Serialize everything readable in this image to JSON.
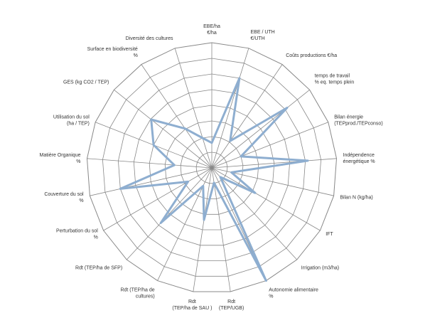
{
  "chart_data": {
    "type": "radar",
    "title": "",
    "rings": 8,
    "grid": true,
    "colors": {
      "grid": "#888888",
      "series": "#8eaed0",
      "label": "#333333"
    },
    "axes": [
      {
        "label": [
          "EBE/ha",
          "€/ha"
        ]
      },
      {
        "label": [
          "EBE / UTH",
          "€/UTH"
        ]
      },
      {
        "label": [
          "Coûts productions  €/ha"
        ]
      },
      {
        "label": [
          "temps de travail",
          "% eq. temps plein"
        ]
      },
      {
        "label": [
          "Bilan énergie",
          "(TEPprod./TEPconso)"
        ]
      },
      {
        "label": [
          "Indépendence",
          "énergétique %"
        ]
      },
      {
        "label": [
          "Bilan N (kg/ha)"
        ]
      },
      {
        "label": [
          "IFT"
        ]
      },
      {
        "label": [
          "Irrigation  (m3/ha)"
        ]
      },
      {
        "label": [
          "Autonomie alimentaire",
          "%"
        ]
      },
      {
        "label": [
          "Rdt",
          "(TEP/UGB)"
        ]
      },
      {
        "label": [
          "Rdt",
          "(TEP/ha de SAU )"
        ]
      },
      {
        "label": [
          "Rdt  (TEP/ha de",
          "cultures)"
        ]
      },
      {
        "label": [
          "Rdt  (TEP/ha de SFP)"
        ]
      },
      {
        "label": [
          "Perturbation du sol",
          "%"
        ]
      },
      {
        "label": [
          "Couverture du sol",
          "%"
        ]
      },
      {
        "label": [
          "Matière Organique",
          "%"
        ]
      },
      {
        "label": [
          "Utilisation du sol",
          "(ha / TEP)"
        ]
      },
      {
        "label": [
          "GES (kg CO2 / TEP)"
        ]
      },
      {
        "label": [
          "Surface en biodiversité",
          "%"
        ]
      },
      {
        "label": [
          "Diversité des cultures"
        ]
      }
    ],
    "series": [
      {
        "values": [
          0.2,
          0.75,
          0.26,
          0.77,
          0.25,
          0.77,
          0.16,
          0.4,
          0.1,
          1.0,
          0.12,
          0.42,
          0.16,
          0.6,
          0.22,
          0.75,
          0.3,
          0.5,
          0.62,
          0.38,
          0.25
        ]
      }
    ]
  }
}
